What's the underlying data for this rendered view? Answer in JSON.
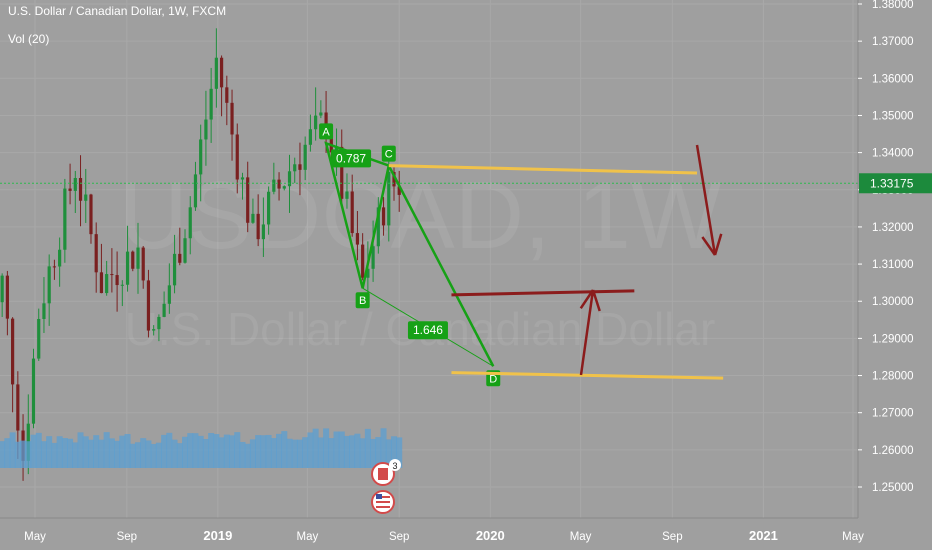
{
  "header": {
    "title": "U.S. Dollar / Canadian Dollar, 1W, FXCM",
    "volume_indicator": "Vol (20)"
  },
  "watermark": {
    "symbol": "USDCAD, 1W",
    "name": "U.S. Dollar / Canadian Dollar"
  },
  "colors": {
    "background": "#9f9f9f",
    "candle": "#1f8f3c",
    "pattern": "#16a116",
    "yellow_line": "#f0c24a",
    "arrow": "#8b1c1c",
    "volume": "#5b9fd1",
    "axis_text": "#ffffff",
    "current_price_bg": "#1c8a3c",
    "current_price_line": "#2fb94f"
  },
  "chart_data": {
    "type": "candlestick",
    "title": "U.S. Dollar / Canadian Dollar, 1W, FXCM",
    "interval": "1W",
    "y_ticks": [
      "1.38000",
      "1.37000",
      "1.36000",
      "1.35000",
      "1.34000",
      "1.33000",
      "1.32000",
      "1.31000",
      "1.30000",
      "1.29000",
      "1.28000",
      "1.27000",
      "1.26000",
      "1.25000"
    ],
    "x_ticks": [
      "May",
      "Sep",
      "2019",
      "May",
      "Sep",
      "2020",
      "May",
      "Sep",
      "2021",
      "May"
    ],
    "ylim": [
      1.2435,
      1.3805
    ],
    "current_price": "1.33175",
    "grid": true,
    "price_path": [
      {
        "date": "2018-02-25",
        "price": 1.286
      },
      {
        "date": "2018-03-18",
        "price": 1.305
      },
      {
        "date": "2018-04-15",
        "price": 1.258
      },
      {
        "date": "2018-05-06",
        "price": 1.297
      },
      {
        "date": "2018-06-24",
        "price": 1.336
      },
      {
        "date": "2018-07-29",
        "price": 1.305
      },
      {
        "date": "2018-09-16",
        "price": 1.314
      },
      {
        "date": "2018-10-07",
        "price": 1.289
      },
      {
        "date": "2018-11-25",
        "price": 1.326
      },
      {
        "date": "2018-12-30",
        "price": 1.365
      },
      {
        "date": "2019-02-17",
        "price": 1.318
      },
      {
        "date": "2019-04-14",
        "price": 1.338
      },
      {
        "date": "2019-05-26",
        "price": 1.349
      },
      {
        "date": "2019-06-23",
        "price": 1.324
      },
      {
        "date": "2019-07-14",
        "price": 1.305
      },
      {
        "date": "2019-08-18",
        "price": 1.331
      },
      {
        "date": "2019-09-01",
        "price": 1.3317
      }
    ],
    "pattern_points": [
      {
        "label": "A",
        "date": "2019-05-26",
        "price": 1.3425
      },
      {
        "label": "B",
        "date": "2019-07-14",
        "price": 1.3035
      },
      {
        "label": "C",
        "date": "2019-08-18",
        "price": 1.3365
      },
      {
        "label": "D",
        "date": "2020-01-05",
        "price": 1.2825
      }
    ],
    "ratios": [
      {
        "label": "0.787",
        "from": "XA-BC"
      },
      {
        "label": "1.646",
        "from": "BC-CD"
      }
    ],
    "levels": [
      {
        "name": "upper",
        "start_date": "2019-08-18",
        "start_price": 1.3365,
        "end_date": "2020-10-04",
        "end_price": 1.3345
      },
      {
        "name": "middle",
        "start_date": "2019-11-10",
        "start_price": 1.3017,
        "end_date": "2020-07-12",
        "end_price": 1.3028
      },
      {
        "name": "lower",
        "start_date": "2019-11-10",
        "start_price": 1.2808,
        "end_date": "2020-11-08",
        "end_price": 1.2793
      }
    ],
    "volume": {
      "label": "Vol (20)"
    },
    "events": [
      {
        "label": "3"
      }
    ]
  }
}
